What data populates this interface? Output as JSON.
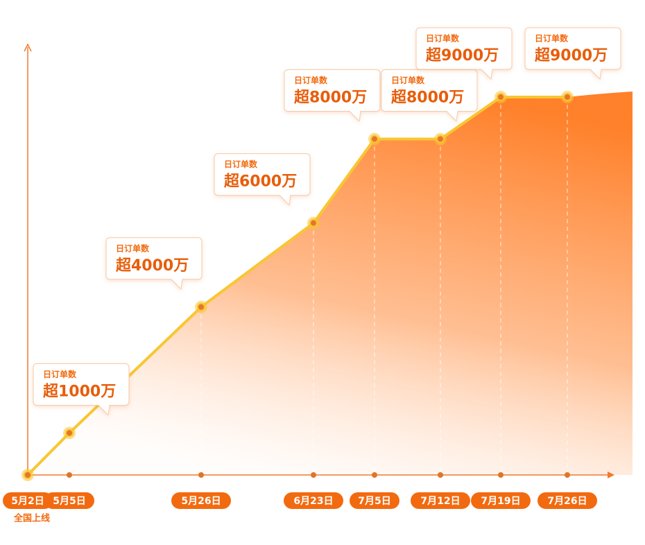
{
  "chart_data": {
    "type": "line",
    "categories": [
      "5月2日",
      "5月5日",
      "5月26日",
      "6月23日",
      "7月5日",
      "7月12日",
      "7月19日",
      "7月26日"
    ],
    "values": [
      0,
      1000,
      4000,
      6000,
      8000,
      8000,
      9000,
      9000
    ],
    "value_labels": [
      null,
      "超1000万",
      "超4000万",
      "超6000万",
      "超8000万",
      "超8000万",
      "超9000万",
      "超9000万"
    ],
    "callout_title": "日订单数",
    "launch_note": "全国上线",
    "color": "#f8c632",
    "area_color": "#ff7a1f",
    "label_color": "#f26a10"
  }
}
